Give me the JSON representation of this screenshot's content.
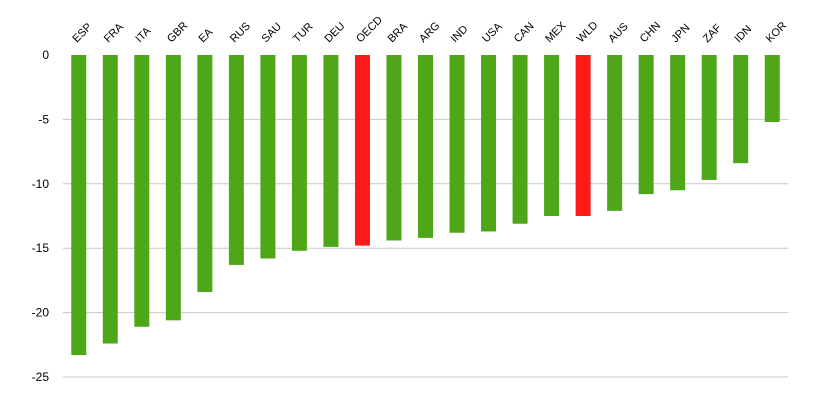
{
  "chart_data": {
    "type": "bar",
    "categories": [
      "ESP",
      "FRA",
      "ITA",
      "GBR",
      "EA",
      "RUS",
      "SAU",
      "TUR",
      "DEU",
      "OECD",
      "BRA",
      "ARG",
      "IND",
      "USA",
      "CAN",
      "MEX",
      "WLD",
      "AUS",
      "CHN",
      "JPN",
      "ZAF",
      "IDN",
      "KOR"
    ],
    "values": [
      -23.3,
      -22.4,
      -21.1,
      -20.6,
      -18.4,
      -16.3,
      -15.8,
      -15.2,
      -14.9,
      -14.8,
      -14.4,
      -14.2,
      -13.8,
      -13.7,
      -13.1,
      -12.5,
      -12.5,
      -12.1,
      -10.8,
      -10.5,
      -9.7,
      -8.4,
      -5.2
    ],
    "highlight": [
      "OECD",
      "WLD"
    ],
    "ylim": [
      -25,
      0
    ],
    "yticks": [
      0,
      -5,
      -10,
      -15,
      -20,
      -25
    ],
    "grid": true,
    "title": "",
    "xlabel": "",
    "ylabel": ""
  },
  "colors": {
    "bar": "#4ea619",
    "highlight": "#ff1a1a",
    "grid": "#c8c8c8"
  }
}
